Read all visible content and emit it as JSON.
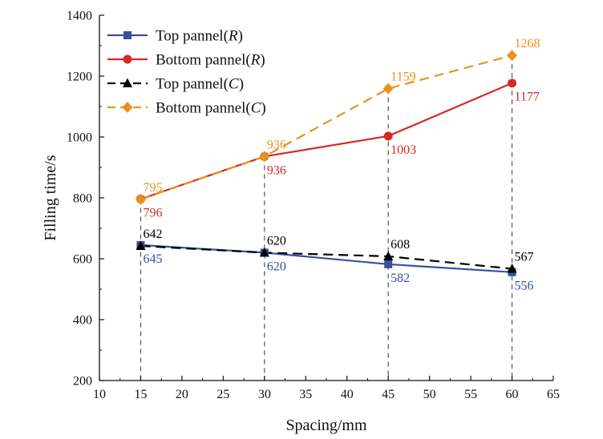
{
  "chart_data": {
    "type": "line",
    "xlabel": "Spacing/mm",
    "ylabel": "Filling time/s",
    "xlim": [
      10,
      65
    ],
    "ylim": [
      200,
      1400
    ],
    "xticks": [
      10,
      15,
      20,
      25,
      30,
      35,
      40,
      45,
      50,
      55,
      60,
      65
    ],
    "yticks": [
      200,
      400,
      600,
      800,
      1000,
      1200,
      1400
    ],
    "x": [
      15,
      30,
      45,
      60
    ],
    "legend_position": "top-left",
    "series": [
      {
        "name": "Top pannel(R)",
        "legend_base": "Top pannel(",
        "legend_var": "R",
        "legend_close": ")",
        "values": [
          645,
          620,
          582,
          556
        ],
        "labels": [
          "645",
          "620",
          "582",
          "556"
        ],
        "color": "#3a4fa0",
        "marker": "square",
        "dash": "solid",
        "label_side": "below"
      },
      {
        "name": "Bottom pannel(R)",
        "legend_base": "Bottom pannel(",
        "legend_var": "R",
        "legend_close": ")",
        "values": [
          796,
          936,
          1003,
          1177
        ],
        "labels": [
          "796",
          "936",
          "1003",
          "1177"
        ],
        "color": "#d42a26",
        "marker": "circle",
        "dash": "solid",
        "label_side": "below"
      },
      {
        "name": "Top pannel(C)",
        "legend_base": "Top pannel(",
        "legend_var": "C",
        "legend_close": ")",
        "values": [
          642,
          620,
          608,
          567
        ],
        "labels": [
          "642",
          "620",
          "608",
          "567"
        ],
        "color": "#000000",
        "marker": "triangle",
        "dash": "dashed",
        "label_side": "above"
      },
      {
        "name": "Bottom pannel(C)",
        "legend_base": "Bottom pannel(",
        "legend_var": "C",
        "legend_close": ")",
        "values": [
          795,
          936,
          1159,
          1268
        ],
        "labels": [
          "795",
          "936",
          "1159",
          "1268"
        ],
        "color": "#e8931e",
        "marker": "diamond",
        "dash": "dashed",
        "label_side": "above"
      }
    ],
    "guide_color": "#555555"
  }
}
